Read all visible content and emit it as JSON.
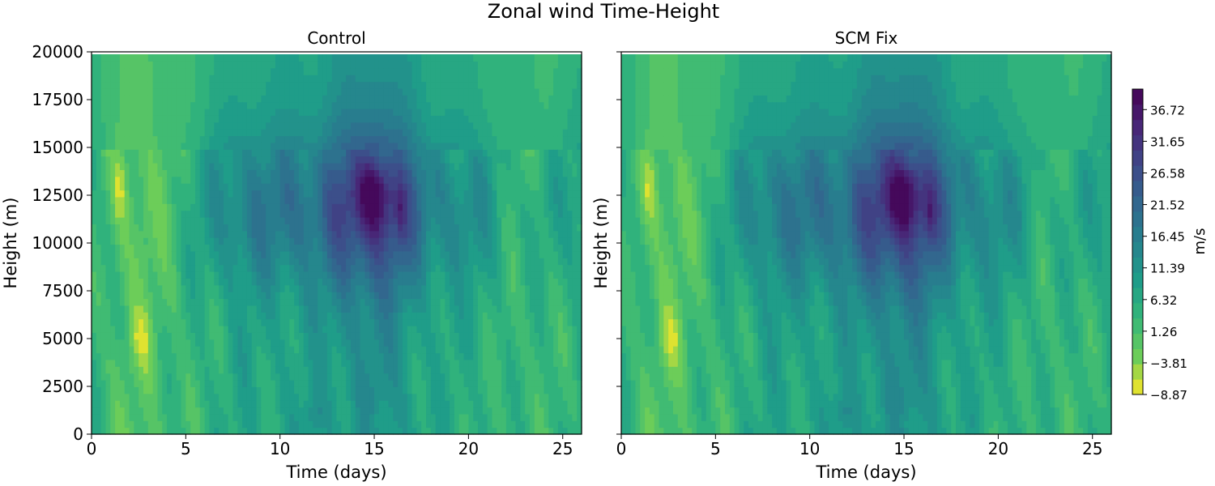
{
  "chart_data": {
    "type": "heatmap",
    "title": "Zonal wind Time-Height",
    "panels": [
      {
        "title": "Control",
        "xlabel": "Time (days)",
        "ylabel": "Height (m)",
        "xlim": [
          0,
          26
        ],
        "ylim": [
          0,
          20000
        ],
        "xticks": [
          0,
          5,
          10,
          15,
          20,
          25
        ],
        "yticks": [
          0,
          2500,
          5000,
          7500,
          10000,
          12500,
          15000,
          17500,
          20000
        ]
      },
      {
        "title": "SCM Fix",
        "xlabel": "Time (days)",
        "ylabel": "Height (m)",
        "xlim": [
          0,
          26
        ],
        "ylim": [
          0,
          20000
        ],
        "xticks": [
          0,
          5,
          10,
          15,
          20,
          25
        ],
        "yticks": [
          0,
          2500,
          5000,
          7500,
          10000,
          12500,
          15000,
          17500,
          20000
        ]
      }
    ],
    "colorbar": {
      "label": "m/s",
      "ticks": [
        "36.72",
        "31.65",
        "26.58",
        "21.52",
        "16.45",
        "11.39",
        "6.32",
        "1.26",
        "−3.81",
        "−8.87"
      ],
      "vmin": -8.87,
      "vmax": 40.0,
      "levels": 20
    },
    "field": {
      "columns": [
        {
          "t": 0,
          "b": 4
        },
        {
          "t": 1.5,
          "b": -3
        },
        {
          "t": 2.7,
          "b": -4
        },
        {
          "t": 4.6,
          "b": 1
        },
        {
          "t": 6.5,
          "b": 10
        },
        {
          "t": 8,
          "b": 14
        },
        {
          "t": 10,
          "b": 16
        },
        {
          "t": 12,
          "b": 18
        },
        {
          "t": 13.5,
          "b": 26
        },
        {
          "t": 15,
          "b": 30
        },
        {
          "t": 16.5,
          "b": 24
        },
        {
          "t": 18,
          "b": 14
        },
        {
          "t": 19,
          "b": 12
        },
        {
          "t": 21,
          "b": 9
        },
        {
          "t": 22.5,
          "b": 2
        },
        {
          "t": 24,
          "b": 4
        },
        {
          "t": 26,
          "b": 8
        }
      ],
      "jet_core": {
        "t": 15,
        "z": 12500,
        "peak": 40
      }
    }
  }
}
